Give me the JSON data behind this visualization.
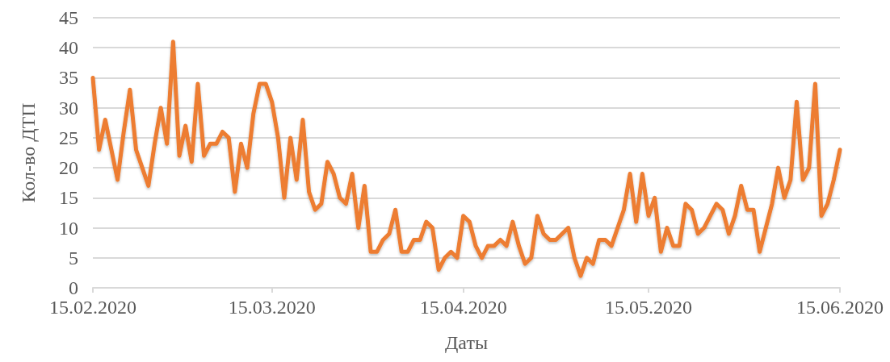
{
  "chart_data": {
    "type": "line",
    "xlabel": "Даты",
    "ylabel": "Кол-во ДТП",
    "x": [
      "2020-02-15",
      "2020-02-16",
      "2020-02-17",
      "2020-02-18",
      "2020-02-19",
      "2020-02-20",
      "2020-02-21",
      "2020-02-22",
      "2020-02-23",
      "2020-02-24",
      "2020-02-25",
      "2020-02-26",
      "2020-02-27",
      "2020-02-28",
      "2020-02-29",
      "2020-03-01",
      "2020-03-02",
      "2020-03-03",
      "2020-03-04",
      "2020-03-05",
      "2020-03-06",
      "2020-03-07",
      "2020-03-08",
      "2020-03-09",
      "2020-03-10",
      "2020-03-11",
      "2020-03-12",
      "2020-03-13",
      "2020-03-14",
      "2020-03-15",
      "2020-03-16",
      "2020-03-17",
      "2020-03-18",
      "2020-03-19",
      "2020-03-20",
      "2020-03-21",
      "2020-03-22",
      "2020-03-23",
      "2020-03-24",
      "2020-03-25",
      "2020-03-26",
      "2020-03-27",
      "2020-03-28",
      "2020-03-29",
      "2020-03-30",
      "2020-03-31",
      "2020-04-01",
      "2020-04-02",
      "2020-04-03",
      "2020-04-04",
      "2020-04-05",
      "2020-04-06",
      "2020-04-07",
      "2020-04-08",
      "2020-04-09",
      "2020-04-10",
      "2020-04-11",
      "2020-04-12",
      "2020-04-13",
      "2020-04-14",
      "2020-04-15",
      "2020-04-16",
      "2020-04-17",
      "2020-04-18",
      "2020-04-19",
      "2020-04-20",
      "2020-04-21",
      "2020-04-22",
      "2020-04-23",
      "2020-04-24",
      "2020-04-25",
      "2020-04-26",
      "2020-04-27",
      "2020-04-28",
      "2020-04-29",
      "2020-04-30",
      "2020-05-01",
      "2020-05-02",
      "2020-05-03",
      "2020-05-04",
      "2020-05-05",
      "2020-05-06",
      "2020-05-07",
      "2020-05-08",
      "2020-05-09",
      "2020-05-10",
      "2020-05-11",
      "2020-05-12",
      "2020-05-13",
      "2020-05-14",
      "2020-05-15",
      "2020-05-16",
      "2020-05-17",
      "2020-05-18",
      "2020-05-19",
      "2020-05-20",
      "2020-05-21",
      "2020-05-22",
      "2020-05-23",
      "2020-05-24",
      "2020-05-25",
      "2020-05-26",
      "2020-05-27",
      "2020-05-28",
      "2020-05-29",
      "2020-05-30",
      "2020-05-31",
      "2020-06-01",
      "2020-06-02",
      "2020-06-03",
      "2020-06-04",
      "2020-06-05",
      "2020-06-06",
      "2020-06-07",
      "2020-06-08",
      "2020-06-09",
      "2020-06-10",
      "2020-06-11",
      "2020-06-12",
      "2020-06-13",
      "2020-06-14",
      "2020-06-15"
    ],
    "series": [
      {
        "color": "#ed7d31",
        "values": [
          35,
          23,
          28,
          23,
          18,
          26,
          33,
          23,
          20,
          17,
          24,
          30,
          24,
          41,
          22,
          27,
          21,
          34,
          22,
          24,
          24,
          26,
          25,
          16,
          24,
          20,
          29,
          34,
          34,
          31,
          25,
          15,
          25,
          18,
          28,
          16,
          13,
          14,
          21,
          19,
          15,
          14,
          19,
          10,
          17,
          6,
          6,
          8,
          9,
          13,
          6,
          6,
          8,
          8,
          11,
          10,
          3,
          5,
          6,
          5,
          12,
          11,
          7,
          5,
          7,
          7,
          8,
          7,
          11,
          7,
          4,
          5,
          12,
          9,
          8,
          8,
          9,
          10,
          5,
          2,
          5,
          4,
          8,
          8,
          7,
          10,
          13,
          19,
          11,
          19,
          12,
          15,
          6,
          10,
          7,
          7,
          14,
          13,
          9,
          10,
          12,
          14,
          13,
          9,
          12,
          17,
          13,
          13,
          6,
          10,
          14,
          20,
          15,
          18,
          31,
          18,
          20,
          34,
          12,
          14,
          18,
          23
        ]
      }
    ],
    "xlim": [
      "2020-02-15",
      "2020-06-15"
    ],
    "xticks": [
      {
        "value": "2020-02-15",
        "label": "15.02.2020"
      },
      {
        "value": "2020-03-15",
        "label": "15.03.2020"
      },
      {
        "value": "2020-04-15",
        "label": "15.04.2020"
      },
      {
        "value": "2020-05-15",
        "label": "15.05.2020"
      },
      {
        "value": "2020-06-15",
        "label": "15.06.2020"
      }
    ],
    "ylim": [
      0,
      45
    ],
    "yticks": [
      0,
      5,
      10,
      15,
      20,
      25,
      30,
      35,
      40,
      45
    ],
    "grid": "y",
    "marker": "none",
    "line_style": "solid"
  }
}
